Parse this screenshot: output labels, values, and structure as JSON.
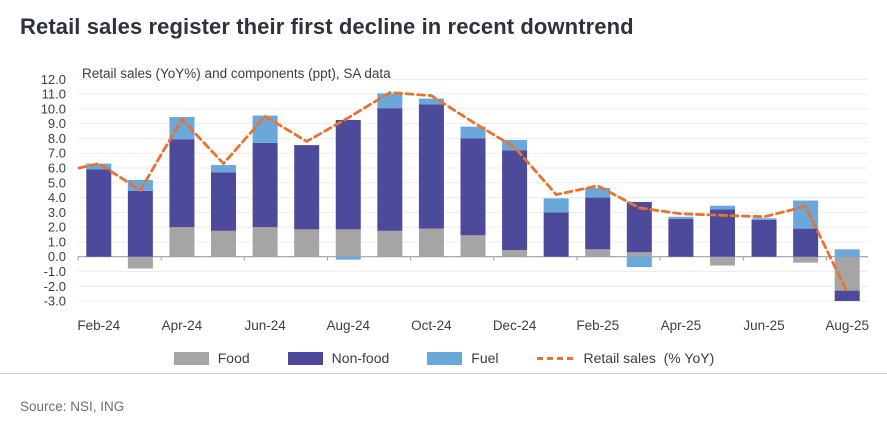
{
  "header": {
    "title": "Retail sales register their first decline in recent downtrend"
  },
  "source": {
    "text": "Source: NSI, ING"
  },
  "colors": {
    "food": "#a5a5a5",
    "non_food": "#4d4a9c",
    "fuel": "#6aa7db",
    "retail_line": "#e8722e",
    "grid": "#ececec",
    "zero_axis": "#9f9f9f",
    "axis_text": "#3f3f3f",
    "title_text": "#2d323c"
  },
  "chart_data": {
    "type": "bar",
    "stacked": true,
    "title": "Retail sales (YoY%) and components (ppt), SA data",
    "categories": [
      "Feb-24",
      "Mar-24",
      "Apr-24",
      "May-24",
      "Jun-24",
      "Jul-24",
      "Aug-24",
      "Sep-24",
      "Oct-24",
      "Nov-24",
      "Dec-24",
      "Jan-25",
      "Feb-25",
      "Mar-25",
      "Apr-25",
      "May-25",
      "Jun-25",
      "Jul-25",
      "Aug-25"
    ],
    "x_tick_labels_shown": [
      "Feb-24",
      "Apr-24",
      "Jun-24",
      "Aug-24",
      "Oct-24",
      "Dec-24",
      "Feb-25",
      "Apr-25",
      "Jun-25",
      "Aug-25"
    ],
    "x_label_every": 2,
    "series": [
      {
        "name": "Food",
        "color": "#a5a5a5",
        "values": [
          0,
          -0.8,
          2.0,
          1.75,
          2.0,
          1.85,
          1.85,
          1.75,
          1.9,
          1.45,
          0.45,
          0,
          0.5,
          0.3,
          0,
          -0.6,
          0,
          -0.4,
          -2.3
        ]
      },
      {
        "name": "Non-food",
        "color": "#4d4a9c",
        "values": [
          5.9,
          4.45,
          5.95,
          3.95,
          5.7,
          5.7,
          7.4,
          8.3,
          8.4,
          6.55,
          6.75,
          3.0,
          3.5,
          3.4,
          2.55,
          3.2,
          2.5,
          1.9,
          -0.7
        ]
      },
      {
        "name": "Fuel",
        "color": "#6aa7db",
        "values": [
          0.4,
          0.75,
          1.5,
          0.5,
          1.85,
          0,
          -0.2,
          1.0,
          0.4,
          0.8,
          0.7,
          0.95,
          0.65,
          -0.7,
          0.15,
          0.25,
          0.1,
          1.9,
          0.5
        ]
      }
    ],
    "line": {
      "name": "Retail sales  (% YoY)",
      "color": "#e8722e",
      "dashed": true,
      "lead_in": 6.0,
      "values": [
        6.3,
        4.5,
        9.3,
        6.3,
        9.5,
        7.8,
        9.4,
        11.1,
        10.9,
        9.1,
        7.4,
        4.2,
        4.8,
        3.3,
        2.9,
        2.8,
        2.7,
        3.4,
        -2.4
      ]
    },
    "ylim": [
      -3.0,
      12.0
    ],
    "ytick_step": 1.0,
    "ytick_decimals": 1,
    "grid": true,
    "legend_position": "bottom",
    "legend": [
      {
        "label": "Food",
        "type": "box",
        "color": "#a5a5a5"
      },
      {
        "label": "Non-food",
        "type": "box",
        "color": "#4d4a9c"
      },
      {
        "label": "Fuel",
        "type": "box",
        "color": "#6aa7db"
      },
      {
        "label": "Retail sales  (% YoY)",
        "type": "dash",
        "color": "#e8722e"
      }
    ]
  }
}
